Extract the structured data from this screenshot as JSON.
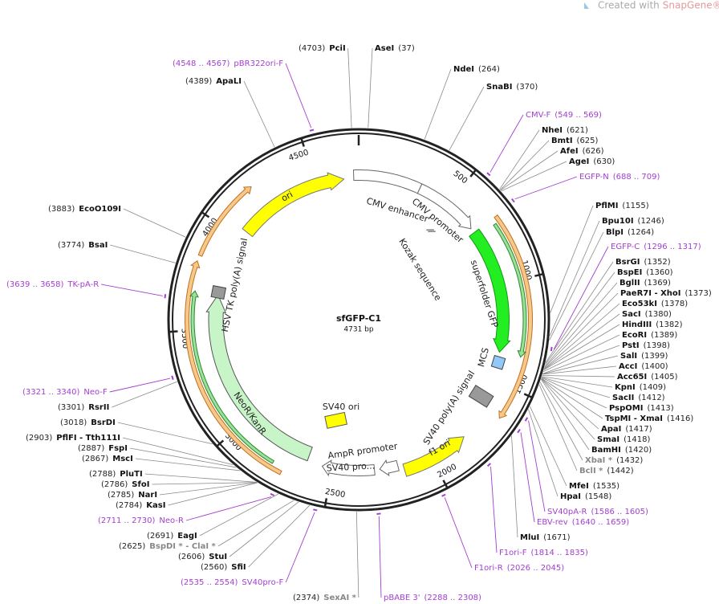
{
  "watermark": {
    "prefix": "Created with",
    "brand": "SnapGene®"
  },
  "map": {
    "name": "sfGFP-C1",
    "size": "4731 bp",
    "ticks": [
      "500",
      "1000",
      "1500",
      "2000",
      "2500",
      "3000",
      "3500",
      "4000",
      "4500"
    ]
  },
  "enzymes": [
    {
      "name": "AseI",
      "position": "(37)"
    },
    {
      "name": "NdeI",
      "position": "(264)"
    },
    {
      "name": "SnaBI",
      "position": "(370)"
    },
    {
      "name": "NheI",
      "position": "(621)"
    },
    {
      "name": "BmtI",
      "position": "(625)"
    },
    {
      "name": "AfeI",
      "position": "(626)"
    },
    {
      "name": "AgeI",
      "position": "(630)"
    },
    {
      "name": "PflMI",
      "position": "(1155)"
    },
    {
      "name": "Bpu10I",
      "position": "(1246)"
    },
    {
      "name": "BlpI",
      "position": "(1264)"
    },
    {
      "name": "BsrGI",
      "position": "(1352)"
    },
    {
      "name": "BspEI",
      "position": "(1360)"
    },
    {
      "name": "BglII",
      "position": "(1369)"
    },
    {
      "name": "PaeR7I - XhoI",
      "position": "(1373)"
    },
    {
      "name": "Eco53kI",
      "position": "(1378)"
    },
    {
      "name": "SacI",
      "position": "(1380)"
    },
    {
      "name": "HindIII",
      "position": "(1382)"
    },
    {
      "name": "EcoRI",
      "position": "(1389)"
    },
    {
      "name": "PstI",
      "position": "(1398)"
    },
    {
      "name": "SalI",
      "position": "(1399)"
    },
    {
      "name": "AccI",
      "position": "(1400)"
    },
    {
      "name": "Acc65I",
      "position": "(1405)"
    },
    {
      "name": "KpnI",
      "position": "(1409)"
    },
    {
      "name": "SacII",
      "position": "(1412)"
    },
    {
      "name": "PspOMI",
      "position": "(1413)"
    },
    {
      "name": "TspMI - XmaI",
      "position": "(1416)"
    },
    {
      "name": "ApaI",
      "position": "(1417)"
    },
    {
      "name": "SmaI",
      "position": "(1418)"
    },
    {
      "name": "BamHI",
      "position": "(1420)"
    },
    {
      "name": "XbaI *",
      "position": "(1432)",
      "color": "#888888"
    },
    {
      "name": "BclI *",
      "position": "(1442)",
      "color": "#888888"
    },
    {
      "name": "MfeI",
      "position": "(1535)"
    },
    {
      "name": "HpaI",
      "position": "(1548)"
    },
    {
      "name": "MluI",
      "position": "(1671)"
    },
    {
      "name": "SexAI *",
      "position": "(2374)",
      "color": "#888888"
    },
    {
      "name": "SfiI",
      "position": "(2560)"
    },
    {
      "name": "StuI",
      "position": "(2606)"
    },
    {
      "name": "BspDI * - ClaI *",
      "position": "(2625)",
      "color": "#888888"
    },
    {
      "name": "EagI",
      "position": "(2691)"
    },
    {
      "name": "KasI",
      "position": "(2784)"
    },
    {
      "name": "NarI",
      "position": "(2785)"
    },
    {
      "name": "SfoI",
      "position": "(2786)"
    },
    {
      "name": "PluTI",
      "position": "(2788)"
    },
    {
      "name": "MscI",
      "position": "(2867)"
    },
    {
      "name": "FspI",
      "position": "(2887)"
    },
    {
      "name": "PflFI - Tth111I",
      "position": "(2903)"
    },
    {
      "name": "BsrDI",
      "position": "(3018)"
    },
    {
      "name": "RsrII",
      "position": "(3301)"
    },
    {
      "name": "BsaI",
      "position": "(3774)"
    },
    {
      "name": "EcoO109I",
      "position": "(3883)"
    },
    {
      "name": "ApaLI",
      "position": "(4389)"
    },
    {
      "name": "PciI",
      "position": "(4703)"
    }
  ],
  "primers": [
    {
      "name": "CMV-F",
      "range": "(549 .. 569)"
    },
    {
      "name": "EGFP-N",
      "range": "(688 .. 709)"
    },
    {
      "name": "EGFP-C",
      "range": "(1296 .. 1317)"
    },
    {
      "name": "SV40pA-R",
      "range": "(1586 .. 1605)"
    },
    {
      "name": "EBV-rev",
      "range": "(1640 .. 1659)"
    },
    {
      "name": "F1ori-F",
      "range": "(1814 .. 1835)"
    },
    {
      "name": "F1ori-R",
      "range": "(2026 .. 2045)"
    },
    {
      "name": "pBABE 3'",
      "range": "(2288 .. 2308)"
    },
    {
      "name": "SV40pro-F",
      "range": "(2535 .. 2554)"
    },
    {
      "name": "Neo-R",
      "range": "(2711 .. 2730)"
    },
    {
      "name": "Neo-F",
      "range": "(3321 .. 3340)"
    },
    {
      "name": "TK-pA-R",
      "range": "(3639 .. 3658)"
    },
    {
      "name": "pBR322ori-F",
      "range": "(4548 .. 4567)"
    }
  ],
  "features": [
    {
      "label": "CMV enhancer"
    },
    {
      "label": "CMV promoter"
    },
    {
      "label": "Kozak sequence"
    },
    {
      "label": "superfolder GFP"
    },
    {
      "label": "MCS"
    },
    {
      "label": "SV40 poly(A) signal"
    },
    {
      "label": "f1 ori"
    },
    {
      "label": "AmpR promoter"
    },
    {
      "label": "SV40 pro..."
    },
    {
      "label": "SV40 ori"
    },
    {
      "label": "NeoR/KanR"
    },
    {
      "label": "HSV TK poly(A) signal"
    },
    {
      "label": "ori"
    }
  ]
}
